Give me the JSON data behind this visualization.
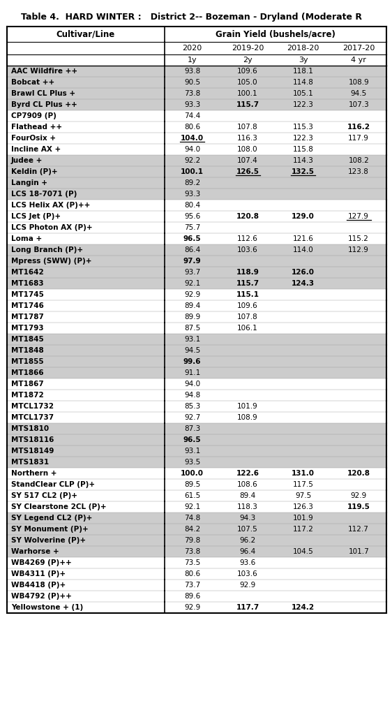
{
  "title": "Table 4.  HARD WINTER :   District 2-- Bozeman - Dryland (Moderate R",
  "col_header1": "Cultivar/Line",
  "col_header2": "Grain Yield (bushels/acre)",
  "sub_headers": [
    "2020",
    "2019-20",
    "2018-20",
    "2017-20"
  ],
  "sub_sub_headers": [
    "1y",
    "2y",
    "3y",
    "4 yr"
  ],
  "rows": [
    {
      "name": "AAC Wildfire ++",
      "vals": [
        "93.8",
        "109.6",
        "118.1",
        ""
      ],
      "bold": [
        false,
        false,
        false,
        false
      ],
      "underline": [
        false,
        false,
        false,
        false
      ],
      "shade": true
    },
    {
      "name": "Bobcat ++",
      "vals": [
        "90.5",
        "105.0",
        "114.8",
        "108.9"
      ],
      "bold": [
        false,
        false,
        false,
        false
      ],
      "underline": [
        false,
        false,
        false,
        false
      ],
      "shade": true
    },
    {
      "name": "Brawl CL Plus +",
      "vals": [
        "73.8",
        "100.1",
        "105.1",
        "94.5"
      ],
      "bold": [
        false,
        false,
        false,
        false
      ],
      "underline": [
        false,
        false,
        false,
        false
      ],
      "shade": true
    },
    {
      "name": "Byrd CL Plus ++",
      "vals": [
        "93.3",
        "115.7",
        "122.3",
        "107.3"
      ],
      "bold": [
        false,
        true,
        false,
        false
      ],
      "underline": [
        false,
        false,
        false,
        false
      ],
      "shade": true
    },
    {
      "name": "CP7909 (P)",
      "vals": [
        "74.4",
        "",
        "",
        ""
      ],
      "bold": [
        false,
        false,
        false,
        false
      ],
      "underline": [
        false,
        false,
        false,
        false
      ],
      "shade": false
    },
    {
      "name": "Flathead ++",
      "vals": [
        "80.6",
        "107.8",
        "115.3",
        "116.2"
      ],
      "bold": [
        false,
        false,
        false,
        true
      ],
      "underline": [
        false,
        false,
        false,
        false
      ],
      "shade": false
    },
    {
      "name": "FourOsix +",
      "vals": [
        "104.0",
        "116.3",
        "122.3",
        "117.9"
      ],
      "bold": [
        true,
        false,
        false,
        false
      ],
      "underline": [
        true,
        false,
        false,
        false
      ],
      "shade": false
    },
    {
      "name": "Incline AX +",
      "vals": [
        "94.0",
        "108.0",
        "115.8",
        ""
      ],
      "bold": [
        false,
        false,
        false,
        false
      ],
      "underline": [
        false,
        false,
        false,
        false
      ],
      "shade": false
    },
    {
      "name": "Judee +",
      "vals": [
        "92.2",
        "107.4",
        "114.3",
        "108.2"
      ],
      "bold": [
        false,
        false,
        false,
        false
      ],
      "underline": [
        false,
        false,
        false,
        false
      ],
      "shade": true
    },
    {
      "name": "Keldin (P)+",
      "vals": [
        "100.1",
        "126.5",
        "132.5",
        "123.8"
      ],
      "bold": [
        true,
        true,
        true,
        false
      ],
      "underline": [
        false,
        true,
        true,
        false
      ],
      "shade": true
    },
    {
      "name": "Langin +",
      "vals": [
        "89.2",
        "",
        "",
        ""
      ],
      "bold": [
        false,
        false,
        false,
        false
      ],
      "underline": [
        false,
        false,
        false,
        false
      ],
      "shade": true
    },
    {
      "name": "LCS 18-7071 (P)",
      "vals": [
        "93.3",
        "",
        "",
        ""
      ],
      "bold": [
        false,
        false,
        false,
        false
      ],
      "underline": [
        false,
        false,
        false,
        false
      ],
      "shade": true
    },
    {
      "name": "LCS Helix AX (P)++",
      "vals": [
        "80.4",
        "",
        "",
        ""
      ],
      "bold": [
        false,
        false,
        false,
        false
      ],
      "underline": [
        false,
        false,
        false,
        false
      ],
      "shade": false
    },
    {
      "name": "LCS Jet (P)+",
      "vals": [
        "95.6",
        "120.8",
        "129.0",
        "127.9"
      ],
      "bold": [
        false,
        true,
        true,
        false
      ],
      "underline": [
        false,
        false,
        false,
        true
      ],
      "shade": false
    },
    {
      "name": "LCS Photon AX (P)+",
      "vals": [
        "75.7",
        "",
        "",
        ""
      ],
      "bold": [
        false,
        false,
        false,
        false
      ],
      "underline": [
        false,
        false,
        false,
        false
      ],
      "shade": false
    },
    {
      "name": "Loma +",
      "vals": [
        "96.5",
        "112.6",
        "121.6",
        "115.2"
      ],
      "bold": [
        true,
        false,
        false,
        false
      ],
      "underline": [
        false,
        false,
        false,
        false
      ],
      "shade": false
    },
    {
      "name": "Long Branch (P)+",
      "vals": [
        "86.4",
        "103.6",
        "114.0",
        "112.9"
      ],
      "bold": [
        false,
        false,
        false,
        false
      ],
      "underline": [
        false,
        false,
        false,
        false
      ],
      "shade": true
    },
    {
      "name": "Mpress (SWW) (P)+",
      "vals": [
        "97.9",
        "",
        "",
        ""
      ],
      "bold": [
        true,
        false,
        false,
        false
      ],
      "underline": [
        false,
        false,
        false,
        false
      ],
      "shade": true
    },
    {
      "name": "MT1642",
      "vals": [
        "93.7",
        "118.9",
        "126.0",
        ""
      ],
      "bold": [
        false,
        true,
        true,
        false
      ],
      "underline": [
        false,
        false,
        false,
        false
      ],
      "shade": true
    },
    {
      "name": "MT1683",
      "vals": [
        "92.1",
        "115.7",
        "124.3",
        ""
      ],
      "bold": [
        false,
        true,
        true,
        false
      ],
      "underline": [
        false,
        false,
        false,
        false
      ],
      "shade": true
    },
    {
      "name": "MT1745",
      "vals": [
        "92.9",
        "115.1",
        "",
        ""
      ],
      "bold": [
        false,
        true,
        false,
        false
      ],
      "underline": [
        false,
        false,
        false,
        false
      ],
      "shade": false
    },
    {
      "name": "MT1746",
      "vals": [
        "89.4",
        "109.6",
        "",
        ""
      ],
      "bold": [
        false,
        false,
        false,
        false
      ],
      "underline": [
        false,
        false,
        false,
        false
      ],
      "shade": false
    },
    {
      "name": "MT1787",
      "vals": [
        "89.9",
        "107.8",
        "",
        ""
      ],
      "bold": [
        false,
        false,
        false,
        false
      ],
      "underline": [
        false,
        false,
        false,
        false
      ],
      "shade": false
    },
    {
      "name": "MT1793",
      "vals": [
        "87.5",
        "106.1",
        "",
        ""
      ],
      "bold": [
        false,
        false,
        false,
        false
      ],
      "underline": [
        false,
        false,
        false,
        false
      ],
      "shade": false
    },
    {
      "name": "MT1845",
      "vals": [
        "93.1",
        "",
        "",
        ""
      ],
      "bold": [
        false,
        false,
        false,
        false
      ],
      "underline": [
        false,
        false,
        false,
        false
      ],
      "shade": true
    },
    {
      "name": "MT1848",
      "vals": [
        "94.5",
        "",
        "",
        ""
      ],
      "bold": [
        false,
        false,
        false,
        false
      ],
      "underline": [
        false,
        false,
        false,
        false
      ],
      "shade": true
    },
    {
      "name": "MT1855",
      "vals": [
        "99.6",
        "",
        "",
        ""
      ],
      "bold": [
        true,
        false,
        false,
        false
      ],
      "underline": [
        false,
        false,
        false,
        false
      ],
      "shade": true
    },
    {
      "name": "MT1866",
      "vals": [
        "91.1",
        "",
        "",
        ""
      ],
      "bold": [
        false,
        false,
        false,
        false
      ],
      "underline": [
        false,
        false,
        false,
        false
      ],
      "shade": true
    },
    {
      "name": "MT1867",
      "vals": [
        "94.0",
        "",
        "",
        ""
      ],
      "bold": [
        false,
        false,
        false,
        false
      ],
      "underline": [
        false,
        false,
        false,
        false
      ],
      "shade": false
    },
    {
      "name": "MT1872",
      "vals": [
        "94.8",
        "",
        "",
        ""
      ],
      "bold": [
        false,
        false,
        false,
        false
      ],
      "underline": [
        false,
        false,
        false,
        false
      ],
      "shade": false
    },
    {
      "name": "MTCL1732",
      "vals": [
        "85.3",
        "101.9",
        "",
        ""
      ],
      "bold": [
        false,
        false,
        false,
        false
      ],
      "underline": [
        false,
        false,
        false,
        false
      ],
      "shade": false
    },
    {
      "name": "MTCL1737",
      "vals": [
        "92.7",
        "108.9",
        "",
        ""
      ],
      "bold": [
        false,
        false,
        false,
        false
      ],
      "underline": [
        false,
        false,
        false,
        false
      ],
      "shade": false
    },
    {
      "name": "MTS1810",
      "vals": [
        "87.3",
        "",
        "",
        ""
      ],
      "bold": [
        false,
        false,
        false,
        false
      ],
      "underline": [
        false,
        false,
        false,
        false
      ],
      "shade": true
    },
    {
      "name": "MTS18116",
      "vals": [
        "96.5",
        "",
        "",
        ""
      ],
      "bold": [
        true,
        false,
        false,
        false
      ],
      "underline": [
        false,
        false,
        false,
        false
      ],
      "shade": true
    },
    {
      "name": "MTS18149",
      "vals": [
        "93.1",
        "",
        "",
        ""
      ],
      "bold": [
        false,
        false,
        false,
        false
      ],
      "underline": [
        false,
        false,
        false,
        false
      ],
      "shade": true
    },
    {
      "name": "MTS1831",
      "vals": [
        "93.5",
        "",
        "",
        ""
      ],
      "bold": [
        false,
        false,
        false,
        false
      ],
      "underline": [
        false,
        false,
        false,
        false
      ],
      "shade": true
    },
    {
      "name": "Northern +",
      "vals": [
        "100.0",
        "122.6",
        "131.0",
        "120.8"
      ],
      "bold": [
        true,
        true,
        true,
        true
      ],
      "underline": [
        false,
        false,
        false,
        false
      ],
      "shade": false
    },
    {
      "name": "StandClear CLP (P)+",
      "vals": [
        "89.5",
        "108.6",
        "117.5",
        ""
      ],
      "bold": [
        false,
        false,
        false,
        false
      ],
      "underline": [
        false,
        false,
        false,
        false
      ],
      "shade": false
    },
    {
      "name": "SY 517 CL2 (P)+",
      "vals": [
        "61.5",
        "89.4",
        "97.5",
        "92.9"
      ],
      "bold": [
        false,
        false,
        false,
        false
      ],
      "underline": [
        false,
        false,
        false,
        false
      ],
      "shade": false
    },
    {
      "name": "SY Clearstone 2CL (P)+",
      "vals": [
        "92.1",
        "118.3",
        "126.3",
        "119.5"
      ],
      "bold": [
        false,
        false,
        false,
        true
      ],
      "underline": [
        false,
        false,
        false,
        false
      ],
      "shade": false
    },
    {
      "name": "SY Legend CL2 (P)+",
      "vals": [
        "74.8",
        "94.3",
        "101.9",
        ""
      ],
      "bold": [
        false,
        false,
        false,
        false
      ],
      "underline": [
        false,
        false,
        false,
        false
      ],
      "shade": true
    },
    {
      "name": "SY Monument (P)+",
      "vals": [
        "84.2",
        "107.5",
        "117.2",
        "112.7"
      ],
      "bold": [
        false,
        false,
        false,
        false
      ],
      "underline": [
        false,
        false,
        false,
        false
      ],
      "shade": true
    },
    {
      "name": "SY Wolverine (P)+",
      "vals": [
        "79.8",
        "96.2",
        "",
        ""
      ],
      "bold": [
        false,
        false,
        false,
        false
      ],
      "underline": [
        false,
        false,
        false,
        false
      ],
      "shade": true
    },
    {
      "name": "Warhorse +",
      "vals": [
        "73.8",
        "96.4",
        "104.5",
        "101.7"
      ],
      "bold": [
        false,
        false,
        false,
        false
      ],
      "underline": [
        false,
        false,
        false,
        false
      ],
      "shade": true
    },
    {
      "name": "WB4269 (P)++",
      "vals": [
        "73.5",
        "93.6",
        "",
        ""
      ],
      "bold": [
        false,
        false,
        false,
        false
      ],
      "underline": [
        false,
        false,
        false,
        false
      ],
      "shade": false
    },
    {
      "name": "WB4311 (P)+",
      "vals": [
        "80.6",
        "103.6",
        "",
        ""
      ],
      "bold": [
        false,
        false,
        false,
        false
      ],
      "underline": [
        false,
        false,
        false,
        false
      ],
      "shade": false
    },
    {
      "name": "WB4418 (P)+",
      "vals": [
        "73.7",
        "92.9",
        "",
        ""
      ],
      "bold": [
        false,
        false,
        false,
        false
      ],
      "underline": [
        false,
        false,
        false,
        false
      ],
      "shade": false
    },
    {
      "name": "WB4792 (P)++",
      "vals": [
        "89.6",
        "",
        "",
        ""
      ],
      "bold": [
        false,
        false,
        false,
        false
      ],
      "underline": [
        false,
        false,
        false,
        false
      ],
      "shade": false
    },
    {
      "name": "Yellowstone + (1)",
      "vals": [
        "92.9",
        "117.7",
        "124.2",
        ""
      ],
      "bold": [
        false,
        true,
        true,
        false
      ],
      "underline": [
        false,
        false,
        false,
        false
      ],
      "shade": false
    }
  ],
  "shade_color": "#cccccc",
  "white_color": "#ffffff",
  "bg_color": "#ffffff",
  "border_color": "#000000",
  "text_color": "#000000"
}
